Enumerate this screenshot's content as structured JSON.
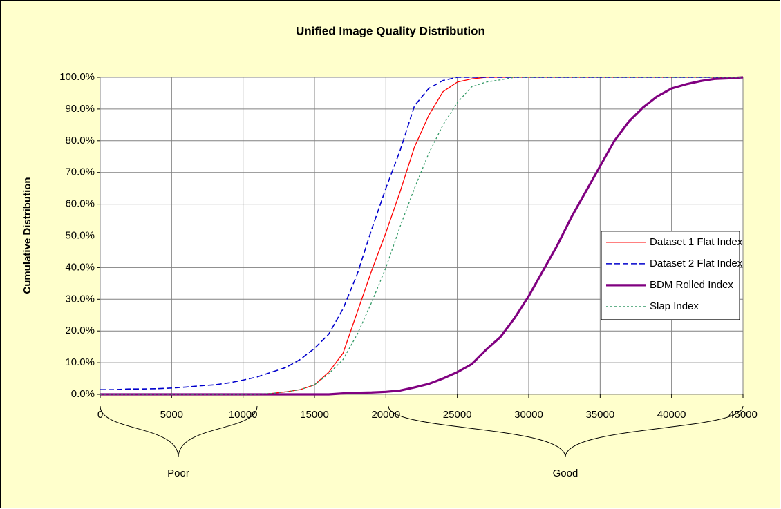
{
  "chart_data": {
    "type": "line",
    "title": "Unified Image Quality Distribution",
    "y_label": "Cumulative Distribution",
    "x": [
      0,
      1000,
      2000,
      3000,
      4000,
      5000,
      6000,
      7000,
      8000,
      9000,
      10000,
      11000,
      12000,
      13000,
      14000,
      15000,
      16000,
      17000,
      18000,
      19000,
      20000,
      21000,
      22000,
      23000,
      24000,
      25000,
      26000,
      27000,
      28000,
      29000,
      30000,
      31000,
      32000,
      33000,
      34000,
      35000,
      36000,
      37000,
      38000,
      39000,
      40000,
      41000,
      42000,
      43000,
      44000,
      45000
    ],
    "series": [
      {
        "name": "Dataset 1 Flat Index",
        "color": "#ff0000",
        "style": "solid",
        "values": [
          0,
          0,
          0,
          0,
          0,
          0,
          0,
          0,
          0,
          0,
          0,
          0,
          0.3,
          0.8,
          1.5,
          3,
          7,
          13,
          26,
          39,
          51,
          64,
          78,
          88,
          95.5,
          98.5,
          99.5,
          100,
          100,
          100,
          100,
          100,
          100,
          100,
          100,
          100,
          100,
          100,
          100,
          100,
          100,
          100,
          100,
          100,
          100,
          100
        ]
      },
      {
        "name": "Dataset 2 Flat Index",
        "color": "#0000cc",
        "style": "dashed",
        "values": [
          1.5,
          1.5,
          1.7,
          1.7,
          1.8,
          2,
          2.3,
          2.7,
          3,
          3.6,
          4.5,
          5.5,
          7,
          8.5,
          11,
          14.5,
          19,
          27,
          38,
          52,
          65,
          77,
          91,
          96.5,
          99,
          100,
          100,
          100,
          100,
          100,
          100,
          100,
          100,
          100,
          100,
          100,
          100,
          100,
          100,
          100,
          100,
          100,
          100,
          100,
          100,
          100
        ]
      },
      {
        "name": "BDM Rolled Index",
        "color": "#800080",
        "style": "bold",
        "values": [
          0,
          0,
          0,
          0,
          0,
          0,
          0,
          0,
          0,
          0,
          0,
          0,
          0,
          0,
          0,
          0,
          0,
          0.3,
          0.5,
          0.6,
          0.8,
          1.2,
          2.2,
          3.3,
          5,
          7,
          9.5,
          14,
          18,
          24,
          31,
          39,
          47,
          56,
          64,
          72,
          80,
          86,
          90.5,
          94,
          96.5,
          97.8,
          98.8,
          99.5,
          99.7,
          100
        ]
      },
      {
        "name": "Slap Index",
        "color": "#339966",
        "style": "dotted",
        "values": [
          0,
          0,
          0,
          0,
          0,
          0,
          0,
          0,
          0,
          0,
          0,
          0,
          0.3,
          0.8,
          1.5,
          3,
          6.5,
          11,
          19,
          29,
          40,
          53,
          65,
          76,
          85,
          92,
          97,
          98.5,
          99.2,
          100,
          100,
          100,
          100,
          100,
          100,
          100,
          100,
          100,
          100,
          100,
          100,
          100,
          100,
          100,
          100,
          100
        ]
      }
    ],
    "xlim": [
      0,
      45000
    ],
    "xticks": [
      0,
      5000,
      10000,
      15000,
      20000,
      25000,
      30000,
      35000,
      40000,
      45000
    ],
    "ylim": [
      0,
      100
    ],
    "yticks": [
      {
        "value": 0,
        "label": "0.0%"
      },
      {
        "value": 10,
        "label": "10.0%"
      },
      {
        "value": 20,
        "label": "20.0%"
      },
      {
        "value": 30,
        "label": "30.0%"
      },
      {
        "value": 40,
        "label": "40.0%"
      },
      {
        "value": 50,
        "label": "50.0%"
      },
      {
        "value": 60,
        "label": "60.0%"
      },
      {
        "value": 70,
        "label": "70.0%"
      },
      {
        "value": 80,
        "label": "80.0%"
      },
      {
        "value": 90,
        "label": "90.0%"
      },
      {
        "value": 100,
        "label": "100.0%"
      }
    ],
    "grid": true,
    "legend": "right",
    "annotations": [
      "Poor",
      "Good"
    ]
  }
}
